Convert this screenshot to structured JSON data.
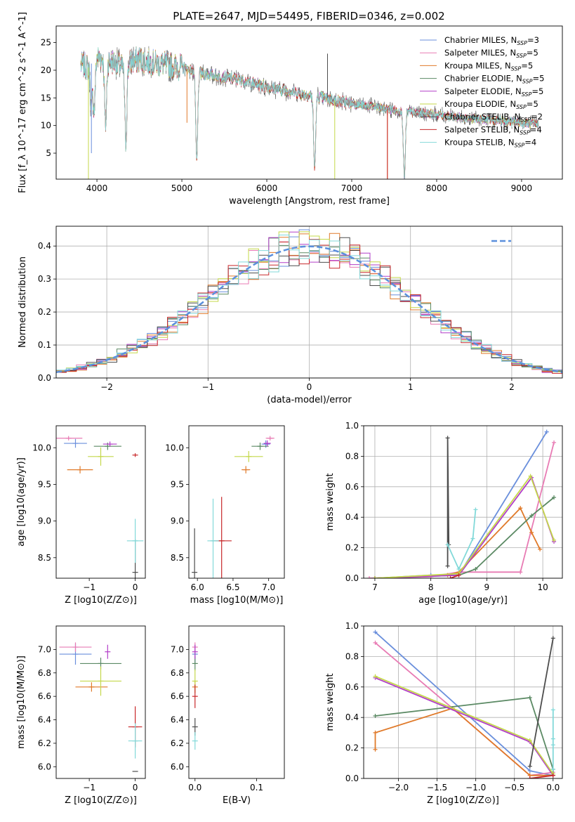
{
  "title": "PLATE=2647, MJD=54495, FIBERID=0346, z=0.002",
  "colors": [
    "#6a8fdc",
    "#e87bb4",
    "#e07a2a",
    "#5b8a64",
    "#b23fc8",
    "#c4d84a",
    "#4d4d4d",
    "#c8282a",
    "#82d9d9"
  ],
  "chart_data": [
    {
      "type": "line",
      "name": "spectrum",
      "xlabel": "wavelength [Angstrom, rest frame]",
      "ylabel": "Flux [f_λ 10^-17 erg cm^-2 s^-1 A^-1]",
      "xlim": [
        3520,
        9480
      ],
      "ylim": [
        0.3,
        28
      ],
      "xticks": [
        4000,
        5000,
        6000,
        7000,
        8000,
        9000
      ],
      "yticks": [
        5,
        10,
        15,
        20,
        25
      ],
      "legend_position": "upper right",
      "legend": [
        {
          "base": "Chabrier MILES",
          "n": "3"
        },
        {
          "base": "Salpeter MILES",
          "n": "5"
        },
        {
          "base": "Kroupa MILES",
          "n": "5"
        },
        {
          "base": "Chabrier ELODIE",
          "n": "5"
        },
        {
          "base": "Salpeter ELODIE",
          "n": "5"
        },
        {
          "base": "Kroupa ELODIE",
          "n": "5"
        },
        {
          "base": "Chabrier STELIB",
          "n": "2"
        },
        {
          "base": "Salpeter STELIB",
          "n": "4"
        },
        {
          "base": "Kroupa STELIB",
          "n": "4"
        }
      ],
      "x": [
        3810,
        3900,
        4000,
        4100,
        4200,
        4300,
        4400,
        4500,
        4600,
        4800,
        5000,
        5200,
        5400,
        5600,
        5800,
        6000,
        6200,
        6400,
        6600,
        6800,
        7000,
        7200,
        7400,
        7600,
        7800,
        8000,
        8200,
        8400,
        8600,
        8800,
        9000,
        9200
      ],
      "y": [
        21,
        20.5,
        22.5,
        22,
        21.5,
        20.5,
        21.5,
        22,
        21.5,
        21,
        20.5,
        19.5,
        19,
        18.5,
        17.8,
        17,
        16.4,
        15.8,
        15.2,
        14.6,
        14,
        13.5,
        13,
        12.6,
        12.3,
        12,
        11.6,
        11.3,
        11,
        10.8,
        10.5,
        10.2
      ],
      "absorption_features": [
        [
          3934,
          8
        ],
        [
          3968,
          9
        ],
        [
          4102,
          12
        ],
        [
          4340,
          14
        ],
        [
          5175,
          16
        ],
        [
          6563,
          13
        ],
        [
          7620,
          12
        ]
      ]
    },
    {
      "type": "histogram",
      "name": "residuals",
      "xlabel": "(data-model)/error",
      "ylabel": "Normed distribution",
      "xlim": [
        -2.5,
        2.5
      ],
      "ylim": [
        0,
        0.46
      ],
      "xticks": [
        -2,
        -1,
        0,
        1,
        2
      ],
      "yticks": [
        0.0,
        0.1,
        0.2,
        0.3,
        0.4
      ],
      "grid": true,
      "legend_position": "upper right",
      "reference_curve": "N(0,1)",
      "bin_width": 0.1
    },
    {
      "type": "scatter",
      "name": "age_vs_Z",
      "xlabel": "Z [log10(Z/Z⊙)]",
      "ylabel": "age  [log10(age/yr)]",
      "xlim": [
        -1.72,
        0.22
      ],
      "ylim": [
        8.22,
        10.3
      ],
      "xticks": [
        -1,
        0
      ],
      "yticks": [
        8.5,
        9.0,
        9.5,
        10.0
      ],
      "points": [
        [
          -1.3,
          10.06,
          0.25,
          0.12
        ],
        [
          -1.45,
          10.13,
          0.3,
          0.06
        ],
        [
          -1.2,
          9.7,
          0.28,
          0.1
        ],
        [
          -0.6,
          10.02,
          0.3,
          0.1
        ],
        [
          -0.55,
          10.05,
          0.15,
          0.07
        ],
        [
          -0.75,
          9.88,
          0.28,
          0.25
        ],
        [
          0.0,
          8.3,
          0.0,
          0.9
        ],
        [
          0.0,
          9.9,
          0.0,
          0.05
        ],
        [
          0.0,
          8.73,
          0.18,
          0.6
        ]
      ]
    },
    {
      "type": "scatter",
      "name": "age_vs_mass",
      "xlabel": "mass [log10(M/M⊙)]",
      "ylabel": "",
      "xlim": [
        5.88,
        7.22
      ],
      "ylim": [
        8.22,
        10.3
      ],
      "xticks": [
        6.0,
        6.5,
        7.0
      ],
      "yticks": [
        8.5,
        9.0,
        9.5,
        10.0
      ],
      "points": [
        [
          6.96,
          10.05,
          0.06,
          0.1
        ],
        [
          7.02,
          10.13,
          0.06,
          0.06
        ],
        [
          6.68,
          9.7,
          0.06,
          0.1
        ],
        [
          6.88,
          10.02,
          0.12,
          0.1
        ],
        [
          6.98,
          10.06,
          0.05,
          0.08
        ],
        [
          6.72,
          9.88,
          0.2,
          0.15
        ],
        [
          5.96,
          8.3,
          0.0,
          1.2
        ],
        [
          6.34,
          8.73,
          0.14,
          1.2
        ],
        [
          6.22,
          8.73,
          0.08,
          1.15
        ]
      ]
    },
    {
      "type": "line",
      "name": "mass_weight_vs_age",
      "xlabel": "age  [log10(age/yr)]",
      "ylabel": "mass weight",
      "xlim": [
        6.8,
        10.35
      ],
      "ylim": [
        0,
        1
      ],
      "xticks": [
        7,
        8,
        9,
        10
      ],
      "yticks": [
        0.0,
        0.2,
        0.4,
        0.6,
        0.8,
        1.0
      ],
      "grid": true,
      "series": [
        {
          "x": [
            7.0,
            8.0,
            8.5,
            10.07
          ],
          "y": [
            0.0,
            0.02,
            0.02,
            0.96
          ]
        },
        {
          "x": [
            6.9,
            8.0,
            8.5,
            9.6,
            10.2
          ],
          "y": [
            0.0,
            0.01,
            0.04,
            0.04,
            0.89
          ]
        },
        {
          "x": [
            7.0,
            8.3,
            8.5,
            9.6,
            9.8,
            9.95
          ],
          "y": [
            0.0,
            0.02,
            0.04,
            0.46,
            0.3,
            0.19
          ]
        },
        {
          "x": [
            7.0,
            8.5,
            8.8,
            9.8,
            10.2
          ],
          "y": [
            0.0,
            0.02,
            0.06,
            0.41,
            0.53
          ]
        },
        {
          "x": [
            7.0,
            8.5,
            9.8,
            10.2
          ],
          "y": [
            0.0,
            0.02,
            0.66,
            0.24
          ]
        },
        {
          "x": [
            7.0,
            8.5,
            9.78,
            10.2
          ],
          "y": [
            0.0,
            0.03,
            0.67,
            0.25
          ]
        },
        {
          "x": [
            8.3,
            8.3,
            8.32
          ],
          "y": [
            0.08,
            0.92,
            0.22
          ]
        },
        {
          "x": [
            8.35,
            8.5
          ],
          "y": [
            0.0,
            0.02
          ]
        },
        {
          "x": [
            8.3,
            8.5,
            8.75,
            8.8
          ],
          "y": [
            0.22,
            0.06,
            0.26,
            0.45
          ]
        }
      ]
    },
    {
      "type": "scatter",
      "name": "mass_vs_Z",
      "xlabel": "Z [log10(Z/Z⊙)]",
      "ylabel": "mass [log10(M/M⊙)]",
      "xlim": [
        -1.72,
        0.22
      ],
      "ylim": [
        5.9,
        7.2
      ],
      "xticks": [
        -1,
        0
      ],
      "yticks": [
        6.0,
        6.2,
        6.4,
        6.6,
        6.8,
        7.0
      ],
      "points": [
        [
          -1.3,
          6.96,
          0.35,
          0.18
        ],
        [
          -1.3,
          7.02,
          0.35,
          0.08
        ],
        [
          -0.95,
          6.68,
          0.35,
          0.08
        ],
        [
          -0.75,
          6.88,
          0.45,
          0.1
        ],
        [
          -0.6,
          6.98,
          0.0,
          0.12
        ],
        [
          -0.75,
          6.73,
          0.45,
          0.25
        ],
        [
          0.0,
          5.96,
          0.0,
          0.0
        ],
        [
          0.0,
          6.34,
          0.15,
          0.35
        ],
        [
          0.0,
          6.22,
          0.15,
          0.3
        ]
      ]
    },
    {
      "type": "scatter",
      "name": "mass_vs_EBV",
      "xlabel": "E(B-V)",
      "ylabel": "",
      "xlim": [
        -0.01,
        0.145
      ],
      "ylim": [
        5.9,
        7.2
      ],
      "xticks": [
        0.0,
        0.1
      ],
      "yticks": [
        6.0,
        6.2,
        6.4,
        6.6,
        6.8,
        7.0
      ],
      "points": [
        [
          0.0,
          6.96,
          0,
          0.15
        ],
        [
          0.0,
          7.02,
          0,
          0.08
        ],
        [
          0.0,
          6.68,
          0,
          0.1
        ],
        [
          0.0,
          6.88,
          0,
          0.12
        ],
        [
          0.0,
          6.98,
          0,
          0.12
        ],
        [
          0.0,
          6.73,
          0,
          0.2
        ],
        [
          0.0,
          6.34,
          0,
          0.15
        ],
        [
          0.0,
          6.6,
          0,
          0.2
        ],
        [
          0.0,
          6.22,
          0,
          0.15
        ]
      ]
    },
    {
      "type": "line",
      "name": "mass_weight_vs_Z",
      "xlabel": "Z [log10(Z/Z⊙)]",
      "ylabel": "mass weight",
      "xlim": [
        -2.45,
        0.12
      ],
      "ylim": [
        0,
        1
      ],
      "xticks": [
        -2.0,
        -1.5,
        -1.0,
        -0.5,
        0.0
      ],
      "yticks": [
        0.0,
        0.2,
        0.4,
        0.6,
        0.8,
        1.0
      ],
      "grid": true,
      "series": [
        {
          "x": [
            -2.3,
            -0.3,
            0.0
          ],
          "y": [
            0.96,
            0.05,
            0.02
          ]
        },
        {
          "x": [
            -2.3,
            -1.3,
            -0.3,
            0.0
          ],
          "y": [
            0.89,
            0.46,
            0.02,
            0.04
          ]
        },
        {
          "x": [
            -2.3,
            -2.3,
            -1.3,
            -0.3,
            0.0
          ],
          "y": [
            0.19,
            0.3,
            0.46,
            0.02,
            0.02
          ]
        },
        {
          "x": [
            -2.3,
            -0.3,
            0.0,
            0.0
          ],
          "y": [
            0.41,
            0.53,
            0.06,
            0.02
          ]
        },
        {
          "x": [
            -2.3,
            -0.3,
            0.0
          ],
          "y": [
            0.66,
            0.24,
            0.02
          ]
        },
        {
          "x": [
            -2.3,
            -0.3,
            0.0
          ],
          "y": [
            0.67,
            0.25,
            0.03
          ]
        },
        {
          "x": [
            -0.3,
            0.0
          ],
          "y": [
            0.08,
            0.92
          ]
        },
        {
          "x": [
            -0.3,
            0.0
          ],
          "y": [
            0.0,
            0.02
          ]
        },
        {
          "x": [
            0.0,
            0.0,
            0.0,
            0.0
          ],
          "y": [
            0.22,
            0.45,
            0.26,
            0.06
          ]
        }
      ]
    }
  ]
}
